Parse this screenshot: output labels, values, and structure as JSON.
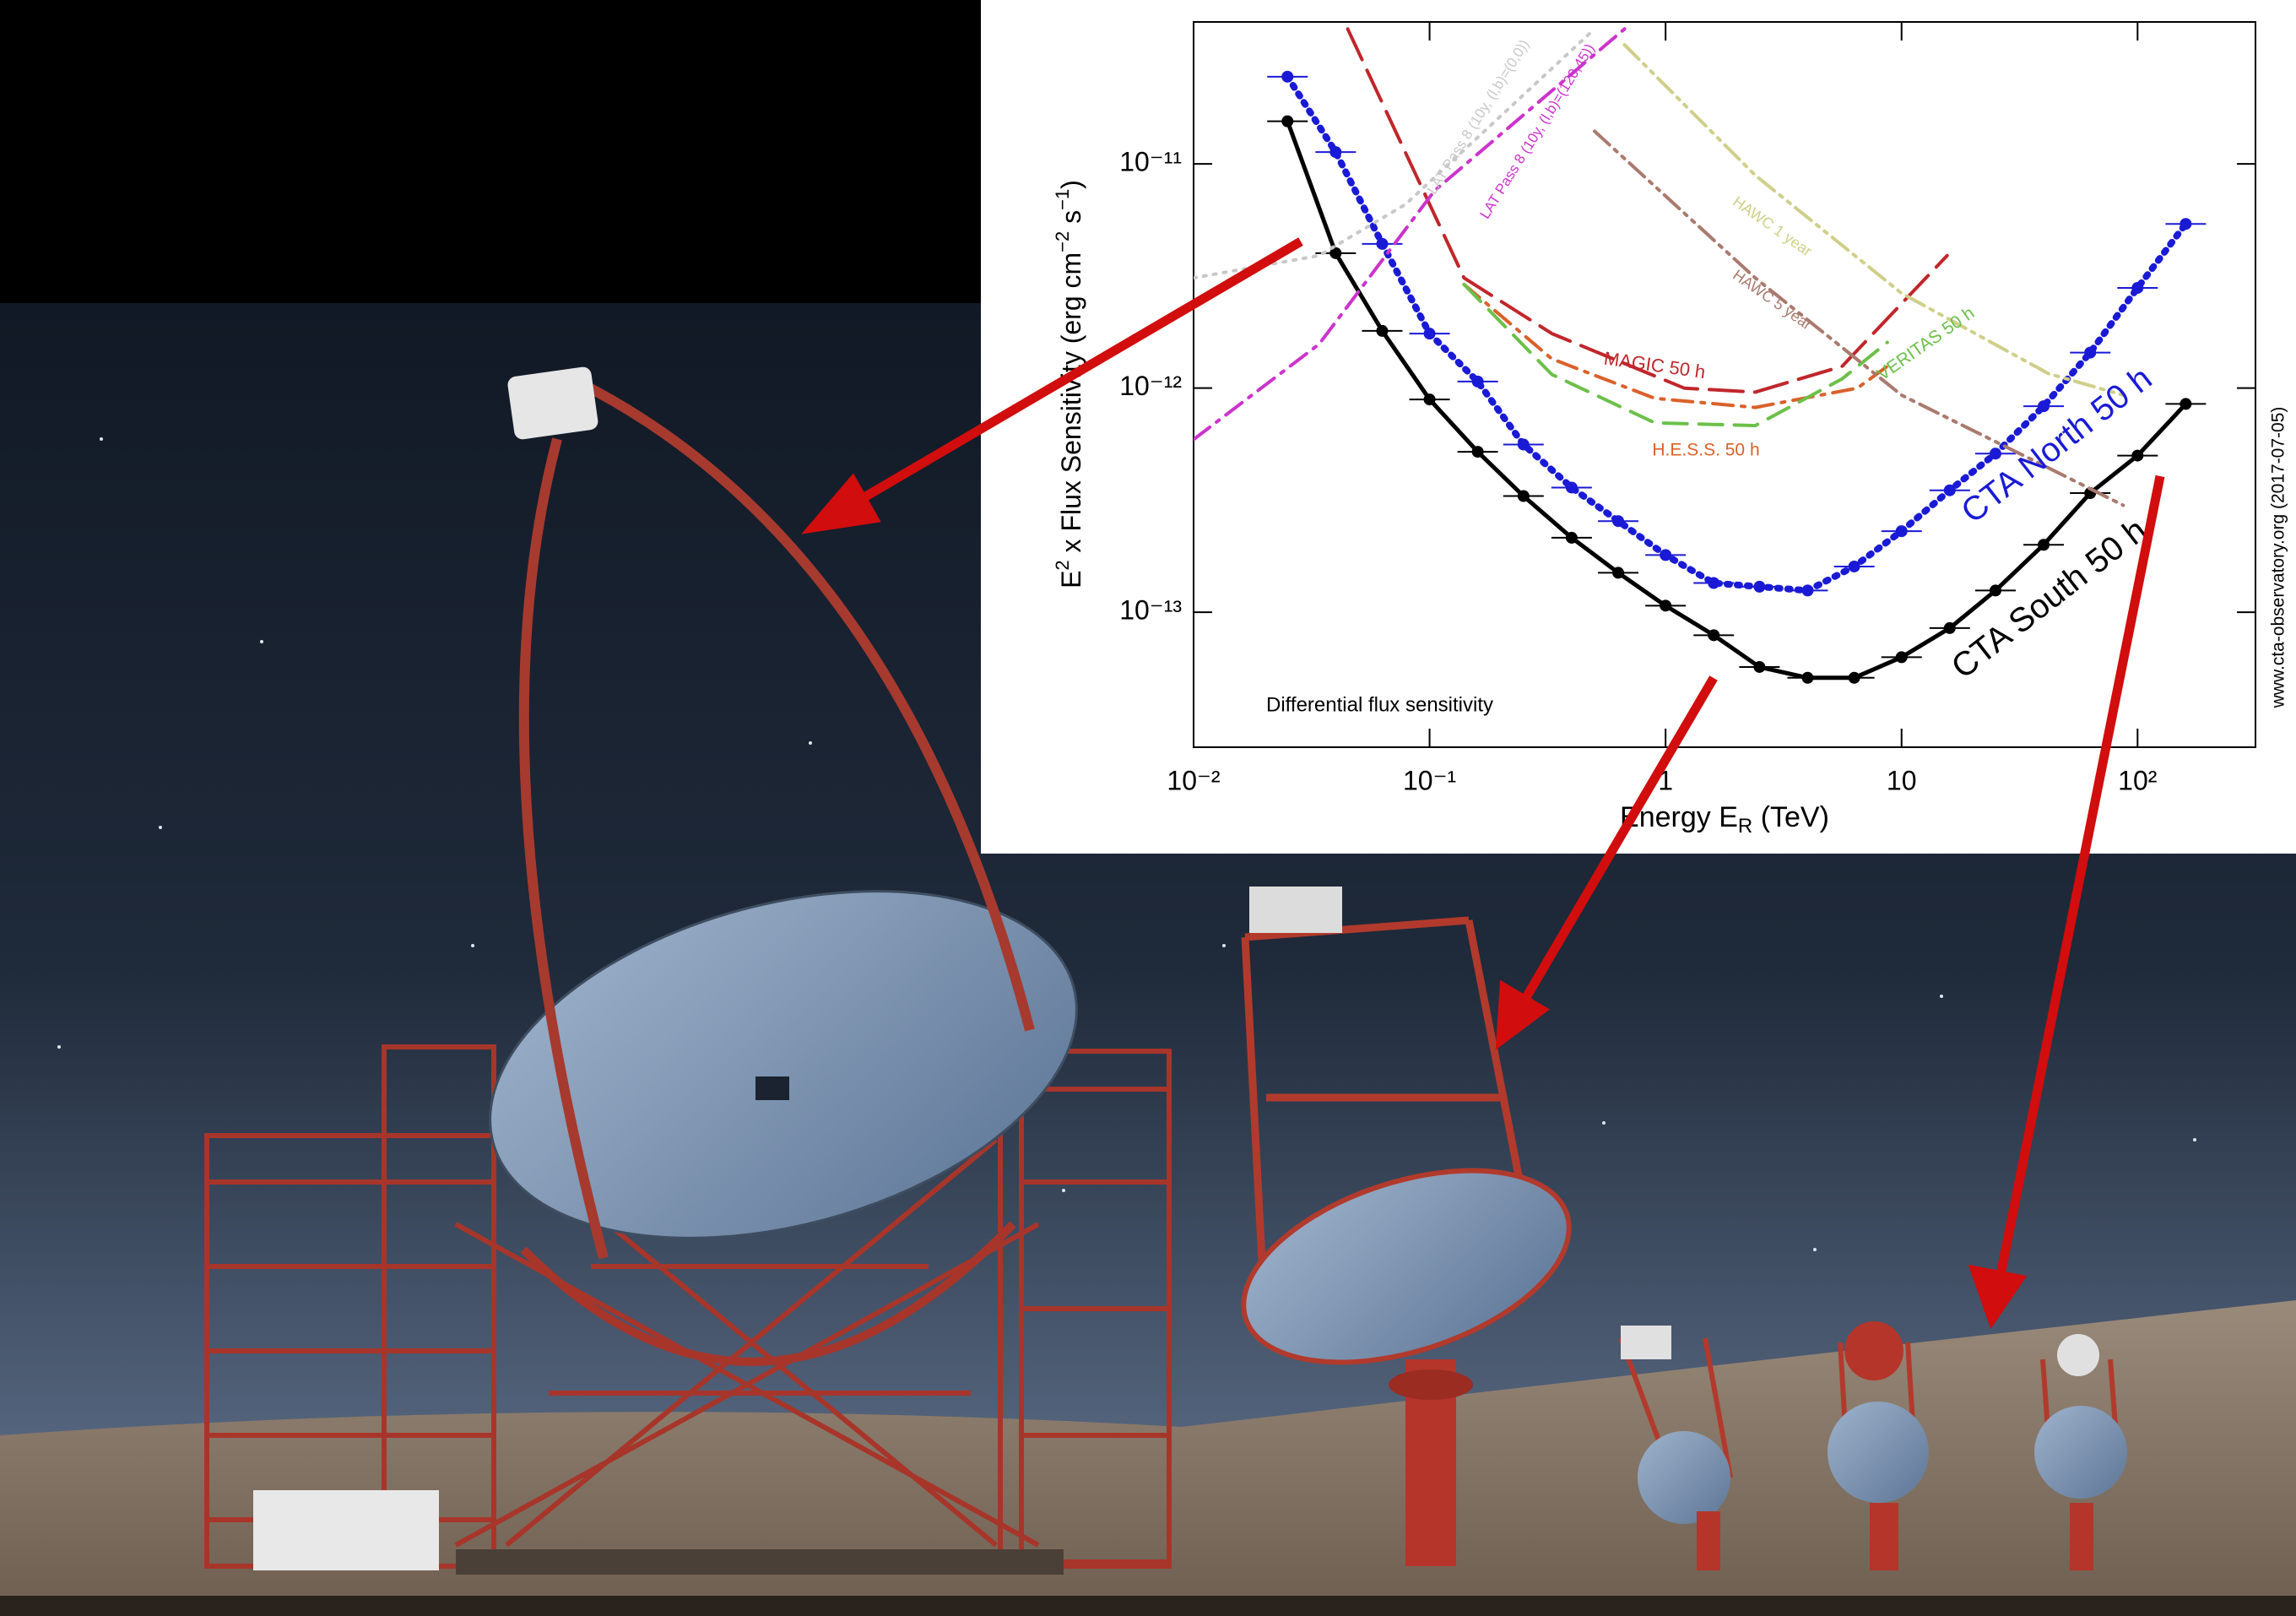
{
  "chart_data": {
    "type": "line",
    "xscale": "log",
    "yscale": "log",
    "xlim": [
      0.01,
      316
    ],
    "ylim": [
      2.5e-14,
      4.3e-11
    ],
    "xticks": [
      {
        "value": 0.01,
        "label": "10⁻²"
      },
      {
        "value": 0.1,
        "label": "10⁻¹"
      },
      1,
      10,
      {
        "value": 100,
        "label": "10²"
      }
    ],
    "yticks": [
      {
        "value": 1e-11,
        "label": "10⁻¹¹"
      },
      {
        "value": 1e-12,
        "label": "10⁻¹²"
      },
      {
        "value": 1e-13,
        "label": "10⁻¹³"
      }
    ],
    "grid": false,
    "xlabel": [
      "Energy E",
      "R",
      " (TeV)"
    ],
    "ylabel": [
      "E",
      "2",
      " x Flux Sensitivity (erg cm",
      "−2",
      " s",
      "−1",
      ")"
    ],
    "annotations": [
      "Differential flux sensitivity",
      "www.cta-observatory.org (2017-07-05)"
    ],
    "series": [
      {
        "name": "CTA South 50 h",
        "color": "#000000",
        "style": "solid",
        "markers": true,
        "x": [
          0.025,
          0.04,
          0.063,
          0.1,
          0.16,
          0.25,
          0.4,
          0.63,
          1,
          1.6,
          2.5,
          4,
          6.3,
          10,
          16,
          25,
          40,
          63,
          100,
          160
        ],
        "values": [
          1.55e-11,
          4e-12,
          1.8e-12,
          8.9e-13,
          5.2e-13,
          3.3e-13,
          2.15e-13,
          1.5e-13,
          1.07e-13,
          7.9e-14,
          5.7e-14,
          5.1e-14,
          5.1e-14,
          6.3e-14,
          8.5e-14,
          1.25e-13,
          2e-13,
          3.4e-13,
          5e-13,
          8.5e-13
        ]
      },
      {
        "name": "CTA North 50 h",
        "color": "#1a1ad6",
        "style": "dotted",
        "markers": true,
        "x": [
          0.025,
          0.04,
          0.063,
          0.1,
          0.16,
          0.25,
          0.4,
          0.63,
          1,
          1.6,
          2.5,
          4,
          6.3,
          10,
          16,
          25,
          40,
          63,
          100,
          160
        ],
        "values": [
          2.45e-11,
          1.13e-11,
          4.4e-12,
          1.75e-12,
          1.07e-12,
          5.6e-13,
          3.6e-13,
          2.55e-13,
          1.8e-13,
          1.35e-13,
          1.3e-13,
          1.25e-13,
          1.6e-13,
          2.3e-13,
          3.5e-13,
          5.1e-13,
          8.3e-13,
          1.44e-12,
          2.8e-12,
          5.4e-12
        ]
      },
      {
        "name": "MAGIC 50 h",
        "color": "#c0262b",
        "style": "longdash",
        "markers": false,
        "x": [
          0.045,
          0.14,
          0.33,
          1.2,
          2.4,
          5.6,
          15.6
        ],
        "values": [
          4e-11,
          3.1e-12,
          1.75e-12,
          1e-12,
          9.6e-13,
          1.25e-12,
          3.9e-12
        ]
      },
      {
        "name": "H.E.S.S. 50 h",
        "color": "#d9612a",
        "style": "dashdot",
        "markers": false,
        "x": [
          0.14,
          0.33,
          0.9,
          2.4,
          6.5,
          8.7
        ],
        "values": [
          2.9e-12,
          1.35e-12,
          9e-13,
          8.2e-13,
          1e-12,
          1.25e-12
        ]
      },
      {
        "name": "VERITAS 50 h",
        "color": "#6cc04a",
        "style": "dashed",
        "markers": false,
        "x": [
          0.14,
          0.33,
          0.9,
          2.4,
          5.6,
          8.7
        ],
        "values": [
          2.9e-12,
          1.15e-12,
          7e-13,
          6.8e-13,
          1.1e-12,
          1.6e-12
        ]
      },
      {
        "name": "HAWC 1 year",
        "color": "#cfcf8a",
        "style": "dashdotdot",
        "markers": false,
        "x": [
          0.67,
          2.4,
          10,
          42,
          87
        ],
        "values": [
          3.4e-11,
          8.9e-12,
          2.65e-12,
          1.16e-12,
          9.3e-13
        ]
      },
      {
        "name": "HAWC 5 year",
        "color": "#a97a6e",
        "style": "dashdotdot",
        "markers": false,
        "x": [
          0.5,
          2.4,
          10,
          42,
          87
        ],
        "values": [
          1.4e-11,
          3.1e-12,
          9.3e-13,
          4.4e-13,
          3e-13
        ]
      },
      {
        "name": "LAT Pass 8 (10y, (l,b)=(0,0))",
        "color": "#c8c8c8",
        "style": "dotted",
        "markers": false,
        "x": [
          0.01,
          0.034,
          0.079,
          0.5
        ],
        "values": [
          3.1e-12,
          3.9e-12,
          6.6e-12,
          4e-11
        ]
      },
      {
        "name": "LAT Pass 8 (10y, (l,b)=(120,45))",
        "color": "#cc33cc",
        "style": "dashdot",
        "markers": false,
        "x": [
          0.01,
          0.034,
          0.105,
          0.67
        ],
        "values": [
          5.9e-13,
          1.57e-12,
          7.6e-12,
          4e-11
        ]
      }
    ]
  }
}
